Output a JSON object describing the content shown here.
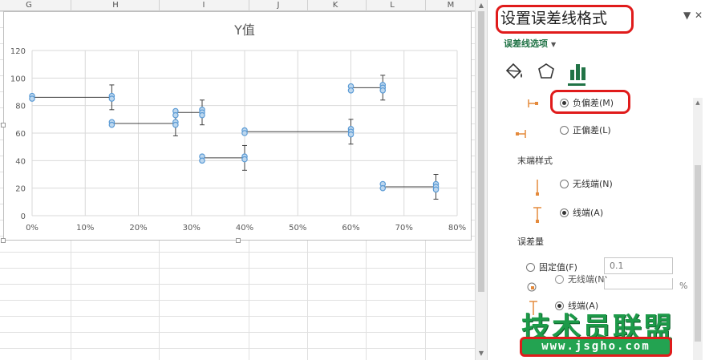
{
  "columns": [
    "G",
    "H",
    "I",
    "J",
    "K",
    "L",
    "M"
  ],
  "chart_data": {
    "type": "scatter",
    "title": "Y值",
    "xlabel": "",
    "ylabel": "",
    "xlim": [
      0,
      0.8
    ],
    "ylim": [
      0,
      120
    ],
    "x_ticks": [
      "0%",
      "10%",
      "20%",
      "30%",
      "40%",
      "50%",
      "60%",
      "70%",
      "80%"
    ],
    "y_ticks": [
      "0",
      "20",
      "40",
      "60",
      "80",
      "100",
      "120"
    ],
    "grid": true,
    "marker_color": "#5b9bd5",
    "error_bar_color": "#404040",
    "points": [
      {
        "x": 0.0,
        "y": 87
      },
      {
        "x": 0.0,
        "y": 85
      },
      {
        "x": 0.15,
        "y": 87
      },
      {
        "x": 0.15,
        "y": 85
      },
      {
        "x": 0.15,
        "y": 68
      },
      {
        "x": 0.15,
        "y": 66
      },
      {
        "x": 0.27,
        "y": 76
      },
      {
        "x": 0.27,
        "y": 73
      },
      {
        "x": 0.27,
        "y": 68
      },
      {
        "x": 0.27,
        "y": 66
      },
      {
        "x": 0.32,
        "y": 77
      },
      {
        "x": 0.32,
        "y": 75
      },
      {
        "x": 0.32,
        "y": 73
      },
      {
        "x": 0.32,
        "y": 43
      },
      {
        "x": 0.32,
        "y": 40
      },
      {
        "x": 0.4,
        "y": 62
      },
      {
        "x": 0.4,
        "y": 60
      },
      {
        "x": 0.4,
        "y": 43
      },
      {
        "x": 0.4,
        "y": 41
      },
      {
        "x": 0.6,
        "y": 94
      },
      {
        "x": 0.6,
        "y": 91
      },
      {
        "x": 0.6,
        "y": 63
      },
      {
        "x": 0.6,
        "y": 61
      },
      {
        "x": 0.6,
        "y": 59
      },
      {
        "x": 0.66,
        "y": 95
      },
      {
        "x": 0.66,
        "y": 93
      },
      {
        "x": 0.66,
        "y": 91
      },
      {
        "x": 0.66,
        "y": 23
      },
      {
        "x": 0.66,
        "y": 20
      },
      {
        "x": 0.76,
        "y": 23
      },
      {
        "x": 0.76,
        "y": 21
      },
      {
        "x": 0.76,
        "y": 19
      }
    ],
    "x_error_minus": [
      {
        "x": 0.15,
        "y": 86,
        "minus": 0.15
      },
      {
        "x": 0.27,
        "y": 67,
        "minus": 0.12
      },
      {
        "x": 0.32,
        "y": 75,
        "minus": 0.05
      },
      {
        "x": 0.4,
        "y": 42,
        "minus": 0.08
      },
      {
        "x": 0.6,
        "y": 61,
        "minus": 0.2
      },
      {
        "x": 0.66,
        "y": 93,
        "minus": 0.06
      },
      {
        "x": 0.76,
        "y": 21,
        "minus": 0.1
      }
    ],
    "y_error_bars": [
      {
        "x": 0.15,
        "y": 86,
        "err": 9
      },
      {
        "x": 0.27,
        "y": 66,
        "err": 8
      },
      {
        "x": 0.32,
        "y": 75,
        "err": 9
      },
      {
        "x": 0.4,
        "y": 42,
        "err": 9
      },
      {
        "x": 0.6,
        "y": 61,
        "err": 9
      },
      {
        "x": 0.66,
        "y": 93,
        "err": 9
      },
      {
        "x": 0.76,
        "y": 21,
        "err": 9
      }
    ]
  },
  "pane": {
    "title": "设置误差线格式",
    "options_tab": "误差线选项",
    "direction": {
      "minus_label": "负偏差(M)",
      "plus_label": "正偏差(L)",
      "selected": "minus"
    },
    "end_style": {
      "heading": "末端样式",
      "no_cap_label": "无线端(N)",
      "cap_label": "线端(A)",
      "selected": "cap"
    },
    "amount": {
      "heading": "误差量",
      "fixed_label": "固定值(F)",
      "fixed_value": "0.1",
      "percent_sign": "%"
    },
    "overlap": {
      "no_cap_label": "无线端(N)",
      "cap_label": "线端(A)"
    },
    "accent_color": "#217346",
    "icon_orange": "#e48a3c"
  },
  "watermark": {
    "text": "技术员联盟",
    "url": "www.jsgho.com"
  }
}
